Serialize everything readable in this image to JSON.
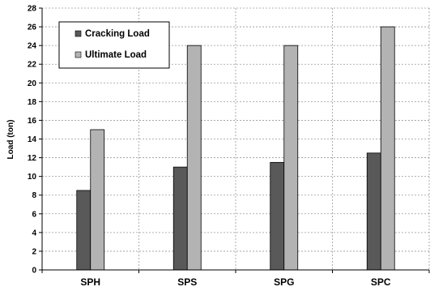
{
  "chart_data": {
    "type": "bar",
    "categories": [
      "SPH",
      "SPS",
      "SPG",
      "SPC"
    ],
    "series": [
      {
        "name": "Cracking Load",
        "values": [
          8.5,
          11,
          11.5,
          12.5
        ],
        "color": "#595959"
      },
      {
        "name": "Ultimate Load",
        "values": [
          15,
          24,
          24,
          26
        ],
        "color": "#b3b3b3"
      }
    ],
    "xlabel": "",
    "ylabel": "Load  (ton)",
    "ylim": [
      0,
      28
    ],
    "yticks": [
      0,
      2,
      4,
      6,
      8,
      10,
      12,
      14,
      16,
      18,
      20,
      22,
      24,
      26,
      28
    ],
    "grid": true,
    "legend_position": "top-left"
  }
}
